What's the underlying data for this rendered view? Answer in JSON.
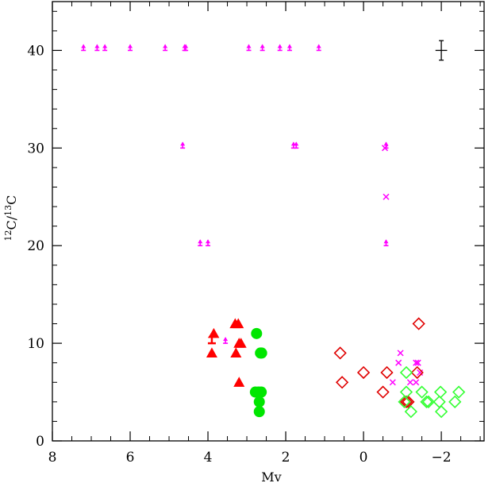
{
  "chart_data": {
    "type": "scatter",
    "title": "",
    "xlabel": "Mv",
    "ylabel_main_1": "C/",
    "ylabel_main_2": "C",
    "ylabel_sup_1": "12",
    "ylabel_sup_2": "13",
    "xlim": [
      8,
      -3.1
    ],
    "ylim": [
      0,
      45
    ],
    "x_ticks": [
      8,
      6,
      4,
      2,
      0,
      -2
    ],
    "x_tick_labels": [
      "8",
      "6",
      "4",
      "2",
      "0",
      "−2"
    ],
    "y_ticks": [
      0,
      10,
      20,
      30,
      40
    ],
    "y_tick_labels": [
      "0",
      "10",
      "20",
      "30",
      "40"
    ],
    "error_bar_reference": {
      "x": -2.0,
      "y": 40,
      "xerr": 0.15,
      "yerr": 1.0
    },
    "series": [
      {
        "marker": "lower-limit-arrow",
        "color": "#ff00ff",
        "points": [
          [
            7.2,
            40
          ],
          [
            6.85,
            40
          ],
          [
            6.65,
            40
          ],
          [
            6.0,
            40
          ],
          [
            5.1,
            40
          ],
          [
            4.6,
            40
          ],
          [
            4.57,
            40
          ],
          [
            2.95,
            40
          ],
          [
            2.6,
            40
          ],
          [
            2.15,
            40
          ],
          [
            1.9,
            40
          ],
          [
            1.15,
            40
          ],
          [
            4.65,
            30
          ],
          [
            1.8,
            30
          ],
          [
            1.73,
            30
          ],
          [
            -0.58,
            30
          ],
          [
            4.2,
            20
          ],
          [
            4.0,
            20
          ],
          [
            -0.58,
            20
          ],
          [
            3.55,
            10
          ]
        ]
      },
      {
        "marker": "cross",
        "color": "#ff00ff",
        "points": [
          [
            -0.55,
            30
          ],
          [
            -0.58,
            25
          ],
          [
            -0.95,
            9
          ],
          [
            -0.9,
            8
          ],
          [
            -1.35,
            8
          ],
          [
            -0.75,
            6
          ],
          [
            -1.2,
            6
          ],
          [
            -1.35,
            6
          ],
          [
            -1.4,
            8
          ],
          [
            -1.45,
            7
          ]
        ]
      },
      {
        "marker": "filled-triangle",
        "color": "#ff0000",
        "points": [
          [
            3.85,
            11
          ],
          [
            3.3,
            12
          ],
          [
            3.22,
            12
          ],
          [
            3.28,
            9
          ],
          [
            3.2,
            10
          ],
          [
            3.15,
            10
          ],
          [
            3.2,
            6
          ],
          [
            3.9,
            9
          ]
        ]
      },
      {
        "marker": "lower-limit-arrow",
        "color": "#ff0000",
        "points": [
          [
            3.9,
            10
          ]
        ]
      },
      {
        "marker": "filled-circle",
        "color": "#00e600",
        "points": [
          [
            2.75,
            11
          ],
          [
            2.62,
            9
          ],
          [
            2.65,
            9
          ],
          [
            2.78,
            5
          ],
          [
            2.7,
            5
          ],
          [
            2.63,
            5
          ],
          [
            2.68,
            4
          ],
          [
            2.68,
            3
          ]
        ]
      },
      {
        "marker": "open-diamond",
        "color": "#e00000",
        "points": [
          [
            0.6,
            9
          ],
          [
            0.55,
            6
          ],
          [
            0.0,
            7
          ],
          [
            -0.6,
            7
          ],
          [
            -0.5,
            5
          ],
          [
            -1.42,
            12
          ],
          [
            -1.38,
            7
          ],
          [
            -1.1,
            4
          ],
          [
            -1.15,
            4
          ]
        ]
      },
      {
        "marker": "open-diamond",
        "color": "#33ff33",
        "points": [
          [
            -1.1,
            7
          ],
          [
            -1.1,
            5
          ],
          [
            -1.05,
            4
          ],
          [
            -1.22,
            3
          ],
          [
            -1.5,
            5
          ],
          [
            -1.62,
            4
          ],
          [
            -1.67,
            4
          ],
          [
            -1.98,
            5
          ],
          [
            -1.95,
            4
          ],
          [
            -2.0,
            3
          ],
          [
            -2.35,
            4
          ],
          [
            -2.45,
            5
          ]
        ]
      }
    ]
  }
}
